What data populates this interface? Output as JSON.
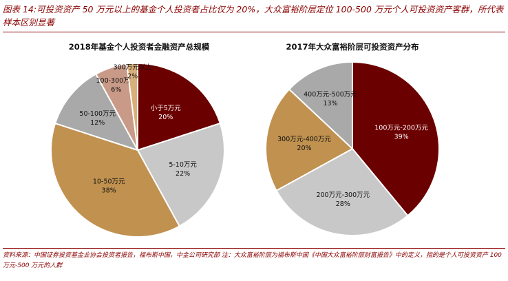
{
  "figure": {
    "title": "图表 14:可投资资产 50 万元以上的基金个人投资者占比仅为 20%，大众富裕阶层定位 100-500 万元个人可投资资产客群，所代表样本区别显著",
    "footnote": "资料来源：中国证券投资基金业协会投资者报告，福布斯中国，中金公司研究部 注：大众富裕阶层为福布斯中国《中国大众富裕阶层财富报告》中的定义，指的是个人可投资资产 100 万元-500 万元的人群"
  },
  "chart_data": [
    {
      "type": "pie",
      "title": "2018年基金个人投资者金融资产总规模",
      "start": "12 o'clock, clockwise",
      "slices": [
        {
          "label": "小于5万元",
          "value": 20,
          "display": "20%",
          "color": "#6b0000",
          "text_color": "#ffffff"
        },
        {
          "label": "5-10万元",
          "value": 22,
          "display": "22%",
          "color": "#c8c8c8",
          "text_color": "#111111"
        },
        {
          "label": "10-50万元",
          "value": 38,
          "display": "38%",
          "color": "#c0914f",
          "text_color": "#111111"
        },
        {
          "label": "50-100万元",
          "value": 12,
          "display": "12%",
          "color": "#a9a9a9",
          "text_color": "#111111"
        },
        {
          "label": "100-300万元",
          "value": 6,
          "display": "6%",
          "color": "#c99a88",
          "text_color": "#111111"
        },
        {
          "label": "300万元以上",
          "value": 2,
          "display": "2%",
          "color": "#d9b07a",
          "text_color": "#111111"
        }
      ]
    },
    {
      "type": "pie",
      "title": "2017年大众富裕阶层可投资资产分布",
      "start": "12 o'clock, clockwise",
      "slices": [
        {
          "label": "100万元-200万元",
          "value": 39,
          "display": "39%",
          "color": "#6b0000",
          "text_color": "#ffffff"
        },
        {
          "label": "200万元-300万元",
          "value": 28,
          "display": "28%",
          "color": "#c8c8c8",
          "text_color": "#111111"
        },
        {
          "label": "300万元-400万元",
          "value": 20,
          "display": "20%",
          "color": "#c0914f",
          "text_color": "#111111"
        },
        {
          "label": "400万元-500万元",
          "value": 13,
          "display": "13%",
          "color": "#a9a9a9",
          "text_color": "#111111"
        }
      ]
    }
  ]
}
